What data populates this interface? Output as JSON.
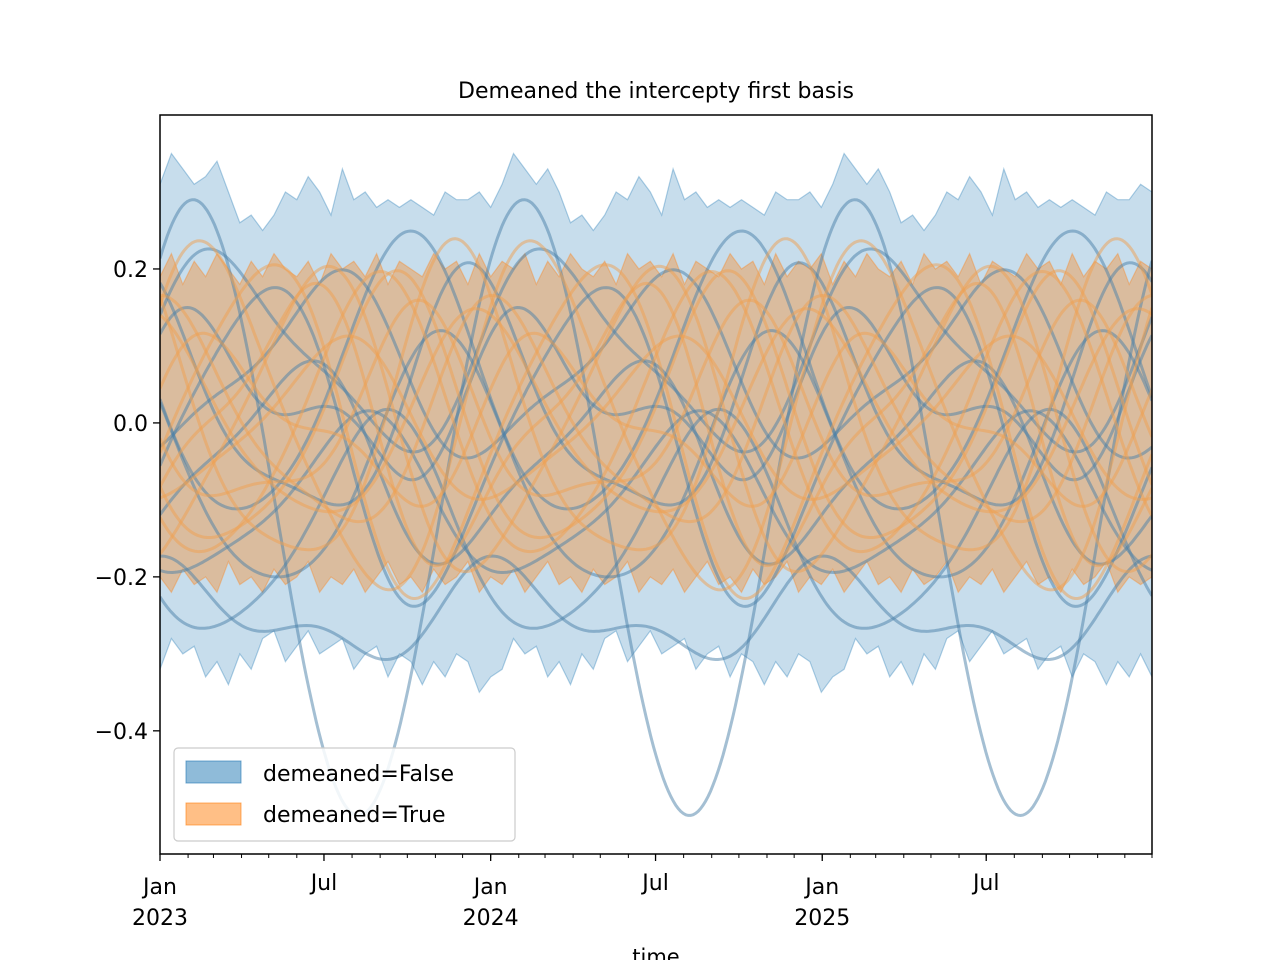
{
  "chart_data": {
    "type": "area",
    "title": "Demeaned the intercepty first basis",
    "xlabel": "time",
    "ylabel": "",
    "xlim": [
      "2023-01-01",
      "2025-12-31"
    ],
    "ylim": [
      -0.56,
      0.4
    ],
    "x_major_ticks": [
      {
        "date": "2023-01-01",
        "label": [
          "Jan",
          "2023"
        ]
      },
      {
        "date": "2023-07-01",
        "label": [
          "Jul"
        ]
      },
      {
        "date": "2024-01-01",
        "label": [
          "Jan",
          "2024"
        ]
      },
      {
        "date": "2024-07-01",
        "label": [
          "Jul"
        ]
      },
      {
        "date": "2025-01-01",
        "label": [
          "Jan",
          "2025"
        ]
      },
      {
        "date": "2025-07-01",
        "label": [
          "Jul"
        ]
      }
    ],
    "y_ticks": [
      {
        "value": 0.2,
        "label": "0.2"
      },
      {
        "value": 0.0,
        "label": "0.0"
      },
      {
        "value": -0.2,
        "label": "−0.2"
      },
      {
        "value": -0.4,
        "label": "−0.4"
      }
    ],
    "legend": {
      "position": "lower-left",
      "entries": [
        {
          "label": "demeaned=False",
          "color": "#1f77b4"
        },
        {
          "label": "demeaned=True",
          "color": "#ff7f0e"
        }
      ]
    },
    "series": [
      {
        "name": "demeaned=False",
        "color": "#1f77b4",
        "band_upper": [
          0.31,
          0.35,
          0.33,
          0.31,
          0.32,
          0.34,
          0.3,
          0.26,
          0.27,
          0.25,
          0.27,
          0.3,
          0.29,
          0.32,
          0.3,
          0.27,
          0.33,
          0.29,
          0.3,
          0.28,
          0.29,
          0.28,
          0.29,
          0.28,
          0.27,
          0.3,
          0.29,
          0.29,
          0.3,
          0.28,
          0.31,
          0.35,
          0.33,
          0.31,
          0.33,
          0.3,
          0.26,
          0.27,
          0.25,
          0.27,
          0.3,
          0.29,
          0.32,
          0.3,
          0.27,
          0.33,
          0.29,
          0.3,
          0.28,
          0.29,
          0.28,
          0.29,
          0.28,
          0.27,
          0.3,
          0.29,
          0.29,
          0.3,
          0.28,
          0.31,
          0.35,
          0.33,
          0.31,
          0.33,
          0.3,
          0.26,
          0.27,
          0.25,
          0.27,
          0.3,
          0.29,
          0.32,
          0.3,
          0.27,
          0.33,
          0.29,
          0.3,
          0.28,
          0.29,
          0.28,
          0.29,
          0.28,
          0.27,
          0.3,
          0.29,
          0.29,
          0.31,
          0.3
        ],
        "band_lower": [
          -0.32,
          -0.28,
          -0.3,
          -0.29,
          -0.33,
          -0.31,
          -0.34,
          -0.3,
          -0.32,
          -0.28,
          -0.27,
          -0.31,
          -0.29,
          -0.27,
          -0.3,
          -0.29,
          -0.28,
          -0.32,
          -0.3,
          -0.29,
          -0.33,
          -0.3,
          -0.31,
          -0.34,
          -0.31,
          -0.33,
          -0.3,
          -0.31,
          -0.35,
          -0.33,
          -0.32,
          -0.28,
          -0.3,
          -0.29,
          -0.33,
          -0.31,
          -0.34,
          -0.3,
          -0.32,
          -0.28,
          -0.27,
          -0.31,
          -0.29,
          -0.27,
          -0.3,
          -0.29,
          -0.28,
          -0.32,
          -0.3,
          -0.29,
          -0.33,
          -0.3,
          -0.31,
          -0.34,
          -0.31,
          -0.33,
          -0.3,
          -0.31,
          -0.35,
          -0.33,
          -0.32,
          -0.28,
          -0.3,
          -0.29,
          -0.33,
          -0.31,
          -0.34,
          -0.3,
          -0.32,
          -0.28,
          -0.27,
          -0.31,
          -0.29,
          -0.27,
          -0.3,
          -0.29,
          -0.28,
          -0.32,
          -0.3,
          -0.29,
          -0.33,
          -0.3,
          -0.31,
          -0.34,
          -0.31,
          -0.33,
          -0.3,
          -0.33
        ],
        "curves": [
          {
            "amp": 0.4,
            "phase": 0.15,
            "offset": -0.11,
            "h2": 0.0
          },
          {
            "amp": 0.18,
            "phase": 0.5,
            "offset": 0.05,
            "h2": 0.02
          },
          {
            "amp": 0.12,
            "phase": 0.85,
            "offset": -0.05,
            "h2": 0.03
          },
          {
            "amp": 0.15,
            "phase": 0.3,
            "offset": 0.02,
            "h2": 0.04
          },
          {
            "amp": 0.1,
            "phase": 0.65,
            "offset": -0.1,
            "h2": 0.02
          },
          {
            "amp": 0.2,
            "phase": 0.95,
            "offset": -0.02,
            "h2": 0.03
          },
          {
            "amp": 0.08,
            "phase": 0.1,
            "offset": 0.03,
            "h2": 0.05
          },
          {
            "amp": 0.16,
            "phase": 0.4,
            "offset": -0.06,
            "h2": 0.02
          },
          {
            "amp": 0.11,
            "phase": 0.75,
            "offset": 0.07,
            "h2": 0.03
          },
          {
            "amp": 0.05,
            "phase": 0.2,
            "offset": -0.25,
            "h2": 0.03
          },
          {
            "amp": 0.14,
            "phase": 0.58,
            "offset": -0.14,
            "h2": 0.02
          },
          {
            "amp": 0.12,
            "phase": 0.05,
            "offset": 0.09,
            "h2": 0.03
          }
        ]
      },
      {
        "name": "demeaned=True",
        "color": "#ff7f0e",
        "band_upper": [
          0.19,
          0.22,
          0.18,
          0.21,
          0.19,
          0.22,
          0.2,
          0.18,
          0.21,
          0.19,
          0.22,
          0.2,
          0.19,
          0.21,
          0.18,
          0.22,
          0.2,
          0.21,
          0.19,
          0.22,
          0.18,
          0.21,
          0.2,
          0.19,
          0.22,
          0.2,
          0.21,
          0.18,
          0.22,
          0.19,
          0.21,
          0.2,
          0.22,
          0.18,
          0.21,
          0.19,
          0.22,
          0.2,
          0.19,
          0.21,
          0.18,
          0.22,
          0.2,
          0.21,
          0.19,
          0.22,
          0.18,
          0.21,
          0.2,
          0.19,
          0.22,
          0.2,
          0.21,
          0.18,
          0.22,
          0.19,
          0.21,
          0.2,
          0.22,
          0.18,
          0.21,
          0.19,
          0.22,
          0.2,
          0.19,
          0.21,
          0.18,
          0.22,
          0.2,
          0.21,
          0.19,
          0.22,
          0.18,
          0.21,
          0.2,
          0.19,
          0.22,
          0.2,
          0.21,
          0.18,
          0.22,
          0.19,
          0.21,
          0.2,
          0.22,
          0.18,
          0.21,
          0.2
        ],
        "band_lower": [
          -0.2,
          -0.22,
          -0.19,
          -0.21,
          -0.2,
          -0.22,
          -0.18,
          -0.21,
          -0.2,
          -0.22,
          -0.19,
          -0.21,
          -0.2,
          -0.18,
          -0.22,
          -0.2,
          -0.21,
          -0.19,
          -0.22,
          -0.2,
          -0.18,
          -0.21,
          -0.2,
          -0.22,
          -0.19,
          -0.21,
          -0.2,
          -0.18,
          -0.22,
          -0.2,
          -0.21,
          -0.19,
          -0.22,
          -0.2,
          -0.18,
          -0.21,
          -0.2,
          -0.22,
          -0.19,
          -0.21,
          -0.2,
          -0.18,
          -0.22,
          -0.2,
          -0.21,
          -0.19,
          -0.22,
          -0.2,
          -0.18,
          -0.21,
          -0.2,
          -0.22,
          -0.19,
          -0.21,
          -0.2,
          -0.18,
          -0.22,
          -0.2,
          -0.21,
          -0.19,
          -0.22,
          -0.2,
          -0.18,
          -0.21,
          -0.2,
          -0.22,
          -0.19,
          -0.21,
          -0.2,
          -0.18,
          -0.22,
          -0.2,
          -0.21,
          -0.19,
          -0.22,
          -0.2,
          -0.18,
          -0.21,
          -0.2,
          -0.22,
          -0.19,
          -0.21,
          -0.2,
          -0.18,
          -0.22,
          -0.2,
          -0.21,
          -0.2
        ],
        "curves": [
          {
            "amp": 0.22,
            "phase": 0.1,
            "offset": 0.0,
            "h2": 0.03
          },
          {
            "amp": 0.2,
            "phase": 0.35,
            "offset": 0.0,
            "h2": 0.04
          },
          {
            "amp": 0.18,
            "phase": 0.6,
            "offset": 0.0,
            "h2": 0.02
          },
          {
            "amp": 0.16,
            "phase": 0.85,
            "offset": 0.0,
            "h2": 0.05
          },
          {
            "amp": 0.14,
            "phase": 0.22,
            "offset": 0.0,
            "h2": 0.03
          },
          {
            "amp": 0.12,
            "phase": 0.48,
            "offset": 0.0,
            "h2": 0.04
          },
          {
            "amp": 0.1,
            "phase": 0.72,
            "offset": 0.0,
            "h2": 0.02
          },
          {
            "amp": 0.21,
            "phase": 0.95,
            "offset": 0.0,
            "h2": 0.03
          },
          {
            "amp": 0.09,
            "phase": 0.05,
            "offset": 0.0,
            "h2": 0.04
          },
          {
            "amp": 0.17,
            "phase": 0.55,
            "offset": 0.0,
            "h2": 0.03
          },
          {
            "amp": 0.13,
            "phase": 0.28,
            "offset": 0.0,
            "h2": 0.02
          },
          {
            "amp": 0.19,
            "phase": 0.78,
            "offset": 0.0,
            "h2": 0.03
          }
        ]
      }
    ]
  }
}
